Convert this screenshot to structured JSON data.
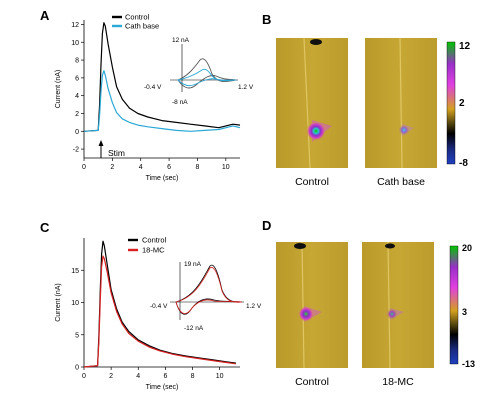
{
  "panels": {
    "A": {
      "letter": "A",
      "chart_data": {
        "type": "line",
        "xlabel": "Time (sec)",
        "ylabel": "Current (nA)",
        "xlim": [
          0,
          11
        ],
        "ylim": [
          -3,
          12.5
        ],
        "xticks": [
          0,
          2,
          4,
          6,
          8,
          10
        ],
        "yticks": [
          -2,
          0,
          2,
          4,
          6,
          8,
          10,
          12
        ],
        "xtick_labels": [
          "0",
          "2",
          "4",
          "6",
          "8",
          "10"
        ],
        "ytick_labels": [
          "-2",
          "0",
          "2",
          "4",
          "6",
          "8",
          "10",
          "12"
        ],
        "annotation": "Stim",
        "series": [
          {
            "name": "Control",
            "color": "#000000",
            "x": [
              0,
              0.5,
              1.0,
              1.1,
              1.2,
              1.3,
              1.4,
              1.5,
              1.7,
              2.0,
              2.3,
              2.7,
              3.2,
              3.8,
              4.5,
              5.5,
              6.5,
              7.5,
              8.5,
              9.5,
              10.5,
              11
            ],
            "y": [
              0.0,
              0.05,
              0.1,
              3.0,
              7.5,
              11.0,
              12.2,
              11.8,
              9.8,
              7.2,
              5.0,
              3.6,
              2.6,
              2.0,
              1.6,
              1.2,
              1.0,
              0.8,
              0.6,
              0.4,
              0.8,
              0.7
            ]
          },
          {
            "name": "Cath base",
            "color": "#2aa8d6",
            "x": [
              0,
              0.5,
              1.0,
              1.1,
              1.2,
              1.3,
              1.4,
              1.5,
              1.7,
              2.0,
              2.3,
              2.7,
              3.2,
              3.8,
              4.5,
              5.5,
              6.5,
              7.5,
              8.5,
              9.5,
              10.5,
              11
            ],
            "y": [
              0.0,
              0.05,
              0.1,
              1.8,
              4.5,
              6.3,
              6.8,
              6.3,
              4.8,
              3.2,
              2.1,
              1.4,
              1.0,
              0.7,
              0.5,
              0.3,
              0.1,
              0.0,
              0.1,
              0.2,
              0.6,
              0.4
            ]
          }
        ],
        "inset": {
          "type": "line",
          "top_label": "12 nA",
          "bottom_label": "-8 nA",
          "left_label": "-0.4 V",
          "right_label": "1.2 V"
        }
      }
    },
    "B": {
      "letter": "B",
      "labels": [
        "Control",
        "Cath base"
      ],
      "colorbar": {
        "max": "12",
        "mid": "2",
        "min": "-8"
      }
    },
    "C": {
      "letter": "C",
      "chart_data": {
        "type": "line",
        "xlabel": "Time (sec)",
        "ylabel": "Current (nA)",
        "xlim": [
          0,
          11.5
        ],
        "ylim": [
          0,
          20
        ],
        "xticks": [
          0,
          2,
          4,
          6,
          8,
          10
        ],
        "yticks": [
          0,
          5,
          10,
          15
        ],
        "xtick_labels": [
          "0",
          "2",
          "4",
          "6",
          "8",
          "10"
        ],
        "ytick_labels": [
          "0",
          "5",
          "10",
          "15"
        ],
        "series": [
          {
            "name": "Control",
            "color": "#000000",
            "x": [
              0,
              0.5,
              1.0,
              1.1,
              1.2,
              1.3,
              1.4,
              1.5,
              1.7,
              2.0,
              2.4,
              2.8,
              3.3,
              4.0,
              4.8,
              5.6,
              6.5,
              7.5,
              8.5,
              9.5,
              10.5,
              11.2
            ],
            "y": [
              0.0,
              0.1,
              0.2,
              5.0,
              12.0,
              17.5,
              19.5,
              18.8,
              16.0,
              12.0,
              9.0,
              7.0,
              5.5,
              4.2,
              3.3,
              2.6,
              2.1,
              1.7,
              1.4,
              1.1,
              0.8,
              0.6
            ]
          },
          {
            "name": "18-MC",
            "color": "#d82020",
            "x": [
              0,
              0.5,
              1.0,
              1.1,
              1.2,
              1.3,
              1.4,
              1.5,
              1.7,
              2.0,
              2.4,
              2.8,
              3.3,
              4.0,
              4.8,
              5.6,
              6.5,
              7.5,
              8.5,
              9.5,
              10.5,
              11.2
            ],
            "y": [
              0.0,
              0.1,
              0.2,
              4.0,
              10.5,
              15.5,
              17.2,
              16.8,
              14.8,
              11.5,
              8.6,
              6.7,
              5.2,
              4.0,
              3.1,
              2.5,
              2.0,
              1.6,
              1.3,
              1.0,
              0.7,
              0.5
            ]
          }
        ],
        "inset": {
          "type": "line",
          "top_label": "19 nA",
          "bottom_label": "-12 nA",
          "left_label": "-0.4 V",
          "right_label": "1.2 V"
        }
      }
    },
    "D": {
      "letter": "D",
      "labels": [
        "Control",
        "18-MC"
      ],
      "colorbar": {
        "max": "20",
        "mid": "3",
        "min": "-13"
      }
    }
  }
}
